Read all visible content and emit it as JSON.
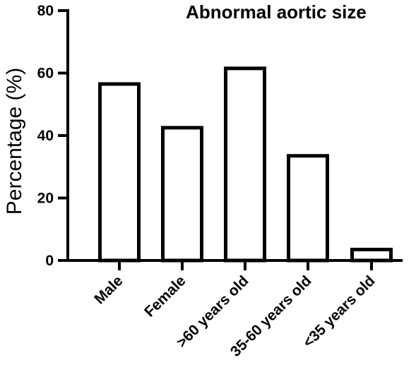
{
  "chart_data": {
    "type": "bar",
    "title": "Abnormal aortic size",
    "xlabel": "",
    "ylabel": "Percentage (%)",
    "categories": [
      "Male",
      "Female",
      ">60 years old",
      "35-60 years old",
      "<35 years old"
    ],
    "values": [
      56.5,
      42.5,
      61.5,
      33.5,
      3.5
    ],
    "ylim": [
      0,
      80
    ],
    "yticks": [
      "0",
      "20",
      "40",
      "60",
      "80"
    ],
    "grid": false,
    "colors": {
      "bar_fill": "#ffffff",
      "bar_stroke": "#000000",
      "axis": "#000000"
    }
  }
}
